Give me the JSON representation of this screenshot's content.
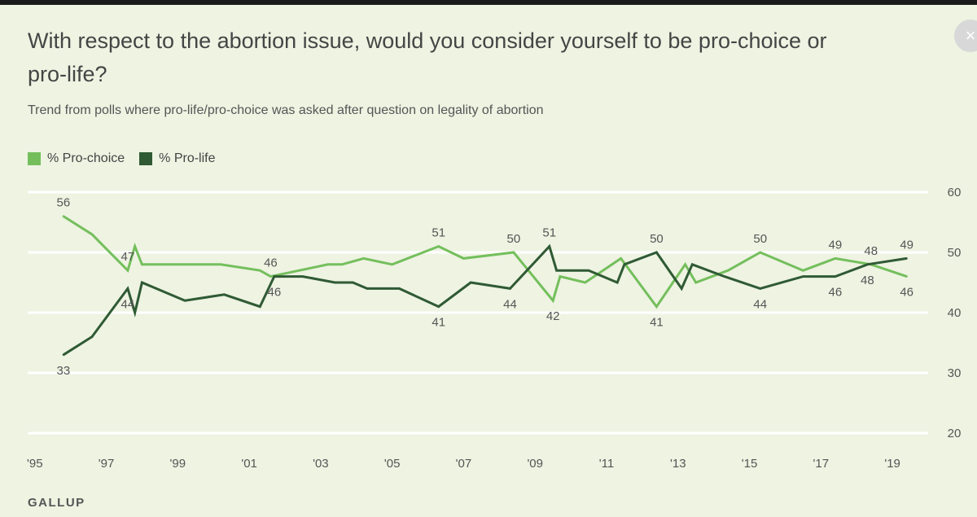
{
  "title": "With respect to the abortion issue, would you consider yourself to be pro-choice or pro-life?",
  "subtitle": "Trend from polls where pro-life/pro-choice was asked after question on legality of abortion",
  "source": "GALLUP",
  "close_glyph": "×",
  "chart_data": {
    "type": "line",
    "title": "With respect to the abortion issue, would you consider yourself to be pro-choice or pro-life?",
    "subtitle": "Trend from polls where pro-life/pro-choice was asked after question on legality of abortion",
    "xlabel": "",
    "ylabel": "",
    "x_ticks": [
      "'95",
      "'97",
      "'99",
      "'01",
      "'03",
      "'05",
      "'07",
      "'09",
      "'11",
      "'13",
      "'15",
      "'17",
      "'19"
    ],
    "x_tick_years": [
      1995,
      1997,
      1999,
      2001,
      2003,
      2005,
      2007,
      2009,
      2011,
      2013,
      2015,
      2017,
      2019
    ],
    "xlim": [
      1994.8,
      2020.0
    ],
    "ylim": [
      20,
      60
    ],
    "y_ticks": [
      20,
      30,
      40,
      50,
      60
    ],
    "y_axis_side": "right",
    "grid": "horizontal",
    "legend": "top-left",
    "series": [
      {
        "name": "% Pro-choice",
        "color": "#74bf5c",
        "points": [
          [
            1995.8,
            56
          ],
          [
            1996.6,
            53
          ],
          [
            1997.6,
            47
          ],
          [
            1997.8,
            51
          ],
          [
            1998.0,
            48
          ],
          [
            1999.0,
            48
          ],
          [
            2000.2,
            48
          ],
          [
            2001.3,
            47
          ],
          [
            2001.6,
            46
          ],
          [
            2002.4,
            47
          ],
          [
            2003.2,
            48
          ],
          [
            2003.6,
            48
          ],
          [
            2004.2,
            49
          ],
          [
            2005.0,
            48
          ],
          [
            2006.3,
            51
          ],
          [
            2007.0,
            49
          ],
          [
            2008.4,
            50
          ],
          [
            2009.5,
            42
          ],
          [
            2009.7,
            46
          ],
          [
            2010.4,
            45
          ],
          [
            2011.4,
            49
          ],
          [
            2012.4,
            41
          ],
          [
            2013.2,
            48
          ],
          [
            2013.5,
            45
          ],
          [
            2014.4,
            47
          ],
          [
            2015.3,
            50
          ],
          [
            2016.5,
            47
          ],
          [
            2017.4,
            49
          ],
          [
            2018.4,
            48
          ],
          [
            2019.4,
            46
          ]
        ],
        "labels": [
          {
            "x": 1995.8,
            "y": 56,
            "text": "56",
            "pos": "above"
          },
          {
            "x": 1997.6,
            "y": 47,
            "text": "47",
            "pos": "above"
          },
          {
            "x": 2001.6,
            "y": 46,
            "text": "46",
            "pos": "above"
          },
          {
            "x": 2006.3,
            "y": 51,
            "text": "51",
            "pos": "above"
          },
          {
            "x": 2008.4,
            "y": 50,
            "text": "50",
            "pos": "above"
          },
          {
            "x": 2009.5,
            "y": 42,
            "text": "42",
            "pos": "below"
          },
          {
            "x": 2012.4,
            "y": 41,
            "text": "41",
            "pos": "below"
          },
          {
            "x": 2015.3,
            "y": 50,
            "text": "50",
            "pos": "above"
          },
          {
            "x": 2017.4,
            "y": 49,
            "text": "49",
            "pos": "above"
          },
          {
            "x": 2018.4,
            "y": 48,
            "text": "48",
            "pos": "above"
          },
          {
            "x": 2019.4,
            "y": 46,
            "text": "46",
            "pos": "below"
          }
        ]
      },
      {
        "name": "% Pro-life",
        "color": "#2f5a34",
        "points": [
          [
            1995.8,
            33
          ],
          [
            1996.6,
            36
          ],
          [
            1997.6,
            44
          ],
          [
            1997.8,
            40
          ],
          [
            1998.0,
            45
          ],
          [
            1999.2,
            42
          ],
          [
            2000.3,
            43
          ],
          [
            2001.3,
            41
          ],
          [
            2001.7,
            46
          ],
          [
            2002.5,
            46
          ],
          [
            2003.4,
            45
          ],
          [
            2003.9,
            45
          ],
          [
            2004.3,
            44
          ],
          [
            2005.2,
            44
          ],
          [
            2006.3,
            41
          ],
          [
            2007.2,
            45
          ],
          [
            2008.3,
            44
          ],
          [
            2009.4,
            51
          ],
          [
            2009.6,
            47
          ],
          [
            2010.5,
            47
          ],
          [
            2011.3,
            45
          ],
          [
            2011.5,
            48
          ],
          [
            2012.4,
            50
          ],
          [
            2013.1,
            44
          ],
          [
            2013.4,
            48
          ],
          [
            2014.3,
            46
          ],
          [
            2015.3,
            44
          ],
          [
            2016.5,
            46
          ],
          [
            2017.4,
            46
          ],
          [
            2018.3,
            48
          ],
          [
            2019.4,
            49
          ]
        ],
        "labels": [
          {
            "x": 1995.8,
            "y": 33,
            "text": "33",
            "pos": "below"
          },
          {
            "x": 1997.6,
            "y": 44,
            "text": "44",
            "pos": "below"
          },
          {
            "x": 2001.7,
            "y": 46,
            "text": "46",
            "pos": "below"
          },
          {
            "x": 2006.3,
            "y": 41,
            "text": "41",
            "pos": "below"
          },
          {
            "x": 2008.3,
            "y": 44,
            "text": "44",
            "pos": "below"
          },
          {
            "x": 2009.4,
            "y": 51,
            "text": "51",
            "pos": "above"
          },
          {
            "x": 2012.4,
            "y": 50,
            "text": "50",
            "pos": "above"
          },
          {
            "x": 2015.3,
            "y": 44,
            "text": "44",
            "pos": "below"
          },
          {
            "x": 2017.4,
            "y": 46,
            "text": "46",
            "pos": "below"
          },
          {
            "x": 2018.3,
            "y": 48,
            "text": "48",
            "pos": "below"
          },
          {
            "x": 2019.4,
            "y": 49,
            "text": "49",
            "pos": "above"
          }
        ]
      }
    ]
  }
}
